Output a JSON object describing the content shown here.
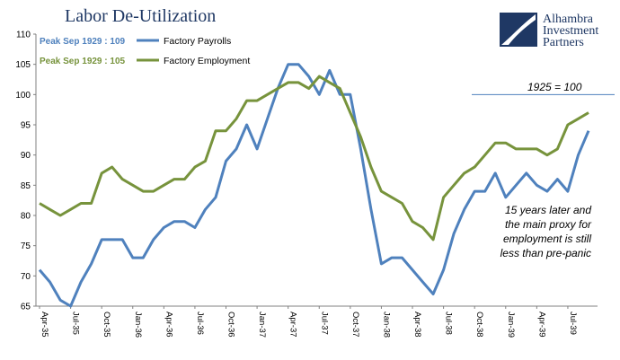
{
  "header": {
    "title": "Labor De-Utilization"
  },
  "brand": {
    "lines": [
      "Alhambra",
      "Investment",
      "Partners"
    ],
    "color": "#1f3864"
  },
  "peaks": {
    "payrolls": "Peak Sep 1929 : 109",
    "employment": "Peak Sep 1929 : 105"
  },
  "annotation": {
    "base_label": "1925 = 100",
    "note_lines": [
      "15 years later and",
      "the main proxy for",
      "employment is still",
      "less than pre-panic"
    ]
  },
  "chart_data": {
    "type": "line",
    "title": "Labor De-Utilization",
    "xlabel": "",
    "ylabel": "",
    "ylim": [
      65,
      110
    ],
    "yticks": [
      65,
      70,
      75,
      80,
      85,
      90,
      95,
      100,
      105,
      110
    ],
    "reference_line": 100,
    "grid": false,
    "legend_position": "top-left",
    "x": [
      "Apr-35",
      "May-35",
      "Jun-35",
      "Jul-35",
      "Aug-35",
      "Sep-35",
      "Oct-35",
      "Nov-35",
      "Dec-35",
      "Jan-36",
      "Feb-36",
      "Mar-36",
      "Apr-36",
      "May-36",
      "Jun-36",
      "Jul-36",
      "Aug-36",
      "Sep-36",
      "Oct-36",
      "Nov-36",
      "Dec-36",
      "Jan-37",
      "Feb-37",
      "Mar-37",
      "Apr-37",
      "May-37",
      "Jun-37",
      "Jul-37",
      "Aug-37",
      "Sep-37",
      "Oct-37",
      "Nov-37",
      "Dec-37",
      "Jan-38",
      "Feb-38",
      "Mar-38",
      "Apr-38",
      "May-38",
      "Jun-38",
      "Jul-38",
      "Aug-38",
      "Sep-38",
      "Oct-38",
      "Nov-38",
      "Dec-38",
      "Jan-39",
      "Feb-39",
      "Mar-39",
      "Apr-39",
      "May-39",
      "Jun-39",
      "Jul-39",
      "Aug-39",
      "Sep-39"
    ],
    "xtick_labels": [
      "Apr-35",
      "Jul-35",
      "Oct-35",
      "Jan-36",
      "Apr-36",
      "Jul-36",
      "Oct-36",
      "Jan-37",
      "Apr-37",
      "Jul-37",
      "Oct-37",
      "Jan-38",
      "Apr-38",
      "Jul-38",
      "Oct-38",
      "Jan-39",
      "Apr-39",
      "Jul-39"
    ],
    "series": [
      {
        "name": "Factory Payrolls",
        "color": "#4f81bd",
        "values": [
          71,
          69,
          66,
          65,
          69,
          72,
          76,
          76,
          76,
          73,
          73,
          76,
          78,
          79,
          79,
          78,
          81,
          83,
          89,
          91,
          95,
          91,
          96,
          101,
          105,
          105,
          103,
          100,
          104,
          100,
          100,
          91,
          81,
          72,
          73,
          73,
          71,
          69,
          67,
          71,
          77,
          81,
          84,
          84,
          87,
          83,
          85,
          87,
          85,
          84,
          86,
          84,
          90,
          94
        ]
      },
      {
        "name": "Factory Employment",
        "color": "#77933c",
        "values": [
          82,
          81,
          80,
          81,
          82,
          82,
          87,
          88,
          86,
          85,
          84,
          84,
          85,
          86,
          86,
          88,
          89,
          94,
          94,
          96,
          99,
          99,
          100,
          101,
          102,
          102,
          101,
          103,
          102,
          101,
          97,
          93,
          88,
          84,
          83,
          82,
          79,
          78,
          76,
          83,
          85,
          87,
          88,
          90,
          92,
          92,
          91,
          91,
          91,
          90,
          91,
          95,
          96,
          97
        ]
      }
    ]
  }
}
